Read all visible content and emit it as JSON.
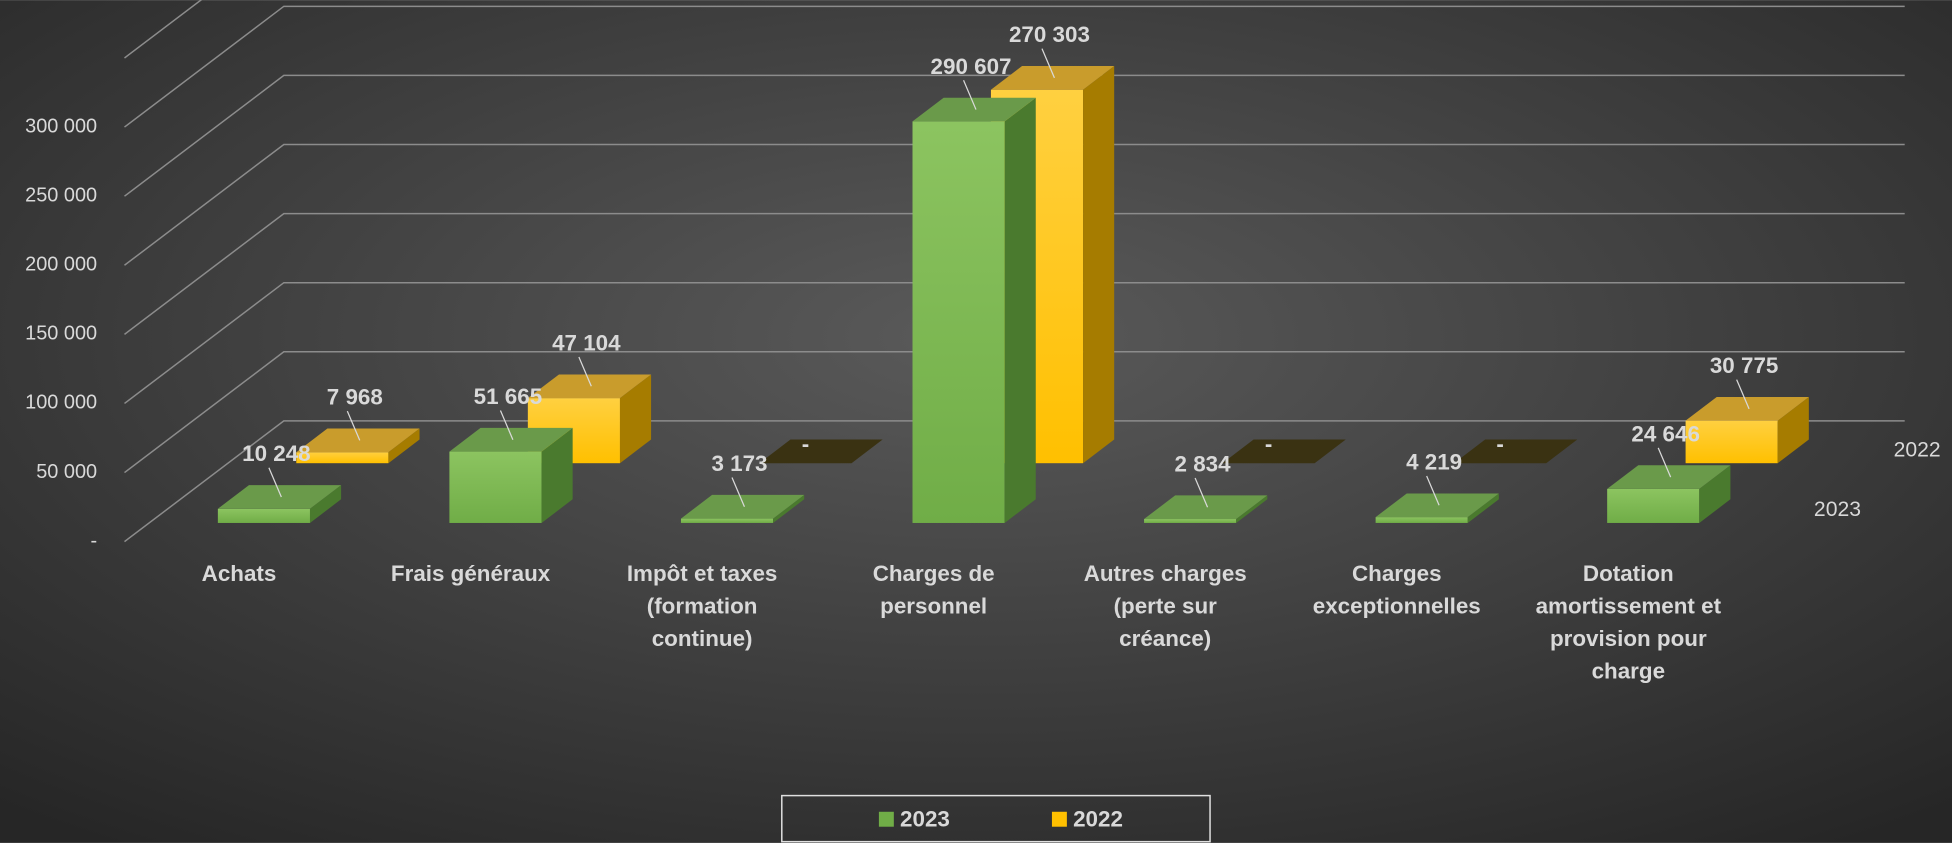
{
  "chart_data": {
    "type": "bar3d",
    "categories": [
      "Achats",
      "Frais généraux",
      "Impôt et taxes\n(formation\ncontinue)",
      "Charges de\npersonnel",
      "Autres charges\n(perte sur\ncréance)",
      "Charges\nexceptionnelles",
      "Dotation\namortissement et\nprovision pour\ncharge"
    ],
    "series": [
      {
        "name": "2023",
        "color": "#70ad47",
        "values": [
          10248,
          51665,
          3173,
          290607,
          2834,
          4219,
          24646
        ],
        "value_labels": [
          "10 248",
          "51 665",
          "3 173",
          "290 607",
          "2 834",
          "4 219",
          "24 646"
        ]
      },
      {
        "name": "2022",
        "color": "#ffc000",
        "values": [
          7968,
          47104,
          0,
          270303,
          0,
          0,
          30775
        ],
        "value_labels": [
          "7 968",
          "47 104",
          "-",
          "270 303",
          "-",
          "-",
          "30 775"
        ]
      }
    ],
    "ylim": [
      0,
      350000
    ],
    "yticks": [
      {
        "value": 0,
        "label": "-"
      },
      {
        "value": 50000,
        "label": "50 000"
      },
      {
        "value": 100000,
        "label": "100 000"
      },
      {
        "value": 150000,
        "label": "150 000"
      },
      {
        "value": 200000,
        "label": "200 000"
      },
      {
        "value": 250000,
        "label": "250 000"
      },
      {
        "value": 300000,
        "label": "300 000"
      }
    ],
    "grid": true,
    "legend": "bottom"
  }
}
